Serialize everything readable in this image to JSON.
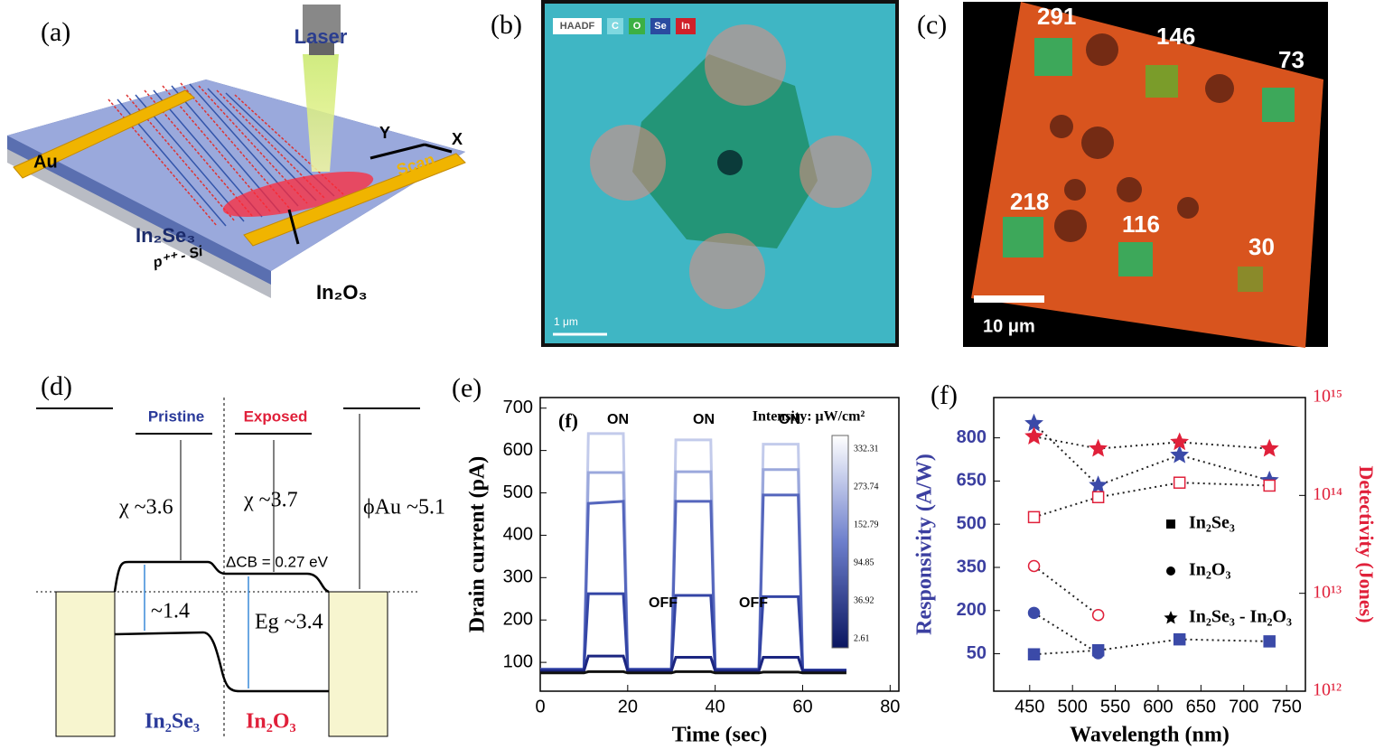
{
  "panels": {
    "a": {
      "label": "(a)",
      "laser": "Laser",
      "au": "Au",
      "y": "Y",
      "x": "X",
      "scan": "Scan",
      "in2se3": "In₂Se₃",
      "in2o3": "In₂O₃",
      "substrate": "p⁺⁺ - Si"
    },
    "b": {
      "label": "(b)",
      "tags": [
        "HAADF",
        "C",
        "O",
        "Se",
        "In"
      ],
      "scale": "1 μm"
    },
    "c": {
      "label": "(c)",
      "spots": [
        "291",
        "146",
        "73",
        "218",
        "116",
        "30"
      ],
      "scale": "10 μm"
    },
    "d": {
      "label": "(d)",
      "pristine": "Pristine",
      "exposed": "Exposed",
      "chi1": "χ ~3.6",
      "chi2": "χ ~3.7",
      "phi": "ϕAu ~5.1",
      "dcb": "ΔCB = 0.27 eV",
      "gap1": "~1.4",
      "gap2": "Eg ~3.4",
      "left": "In₂Se₃",
      "right": "In₂O₃"
    }
  },
  "chart_data": [
    {
      "type": "line",
      "label": "(e)",
      "xlabel": "Time (sec)",
      "ylabel": "Drain current (pA)",
      "annotations": [
        "(f)",
        "ON",
        "ON",
        "ON",
        "OFF",
        "OFF",
        "Intensity: μW/cm²"
      ],
      "colorbar_labels": [
        "332.31",
        "273.74",
        "152.79",
        "94.85",
        "36.92",
        "2.61"
      ],
      "x": [
        0,
        10,
        11,
        19,
        20,
        30,
        31,
        39,
        40,
        50,
        51,
        59,
        60,
        70
      ],
      "series": [
        {
          "color": "#c3cbeb",
          "values": [
            80,
            80,
            640,
            640,
            80,
            80,
            625,
            625,
            80,
            80,
            615,
            615,
            78,
            78
          ]
        },
        {
          "color": "#9ba8dc",
          "values": [
            82,
            82,
            548,
            548,
            82,
            82,
            550,
            550,
            82,
            82,
            555,
            555,
            80,
            80
          ]
        },
        {
          "color": "#5566bd",
          "values": [
            84,
            84,
            475,
            480,
            84,
            84,
            480,
            480,
            84,
            84,
            495,
            495,
            82,
            82
          ]
        },
        {
          "color": "#3445a5",
          "values": [
            83,
            83,
            262,
            262,
            83,
            83,
            258,
            258,
            83,
            83,
            255,
            255,
            82,
            82
          ]
        },
        {
          "color": "#1b2580",
          "values": [
            80,
            80,
            115,
            115,
            80,
            80,
            112,
            112,
            80,
            80,
            112,
            112,
            80,
            80
          ]
        },
        {
          "color": "#111111",
          "values": [
            75,
            75,
            78,
            78,
            75,
            75,
            78,
            78,
            75,
            75,
            77,
            77,
            75,
            75
          ]
        }
      ],
      "xlim": [
        0,
        82
      ],
      "xticks": [
        0,
        20,
        40,
        60,
        80
      ],
      "ylim": [
        32,
        725
      ],
      "yticks": [
        100,
        200,
        300,
        400,
        500,
        600,
        700
      ]
    },
    {
      "type": "scatter",
      "label": "(f)",
      "xlabel": "Wavelength (nm)",
      "ylabel": "Responsivity (A/W)",
      "y2label": "Detectivity (Jones)",
      "ycolor": "#3b3fa0",
      "y2color": "#e0203a",
      "y2log": true,
      "series": [
        {
          "name": "In₂Se₃",
          "marker": "square",
          "filled": true,
          "color": "#3b4aa8",
          "x": [
            455,
            530,
            625,
            730
          ],
          "values": [
            48,
            62,
            100,
            93
          ]
        },
        {
          "name": "In₂O₃",
          "marker": "circle",
          "filled": true,
          "color": "#3b4aa8",
          "x": [
            455,
            530
          ],
          "values": [
            192,
            52
          ]
        },
        {
          "name": "In₂Se₃ - In₂O₃",
          "marker": "star",
          "filled": true,
          "color": "#3b4aa8",
          "x": [
            455,
            530,
            625,
            730
          ],
          "values": [
            850,
            635,
            740,
            652
          ]
        },
        {
          "marker": "square",
          "filled": false,
          "color": "#e0203a",
          "axis": "y2",
          "x": [
            455,
            530,
            625,
            730
          ],
          "values": [
            60000000000000,
            96000000000000,
            135000000000000,
            126000000000000
          ]
        },
        {
          "marker": "circle",
          "filled": false,
          "color": "#e0203a",
          "axis": "y2",
          "x": [
            455,
            530
          ],
          "values": [
            19000000000000,
            6000000000000
          ]
        },
        {
          "marker": "star",
          "filled": true,
          "color": "#e0203a",
          "axis": "y2",
          "x": [
            455,
            530,
            625,
            730
          ],
          "values": [
            400000000000000,
            300000000000000,
            350000000000000,
            300000000000000
          ]
        }
      ],
      "xlim": [
        408,
        772
      ],
      "xticks": [
        450,
        500,
        550,
        600,
        650,
        700,
        750
      ],
      "ylim": [
        -80,
        940
      ],
      "yticks": [
        50,
        200,
        350,
        500,
        650,
        800
      ],
      "y2lim": [
        1000000000000,
        1000000000000000
      ],
      "y2ticks": [
        {
          "value": 1000000000000,
          "label": "10¹²"
        },
        {
          "value": 10000000000000,
          "label": "10¹³"
        },
        {
          "value": 100000000000000,
          "label": "10¹⁴"
        },
        {
          "value": 1000000000000000,
          "label": "10¹⁵"
        }
      ]
    }
  ]
}
